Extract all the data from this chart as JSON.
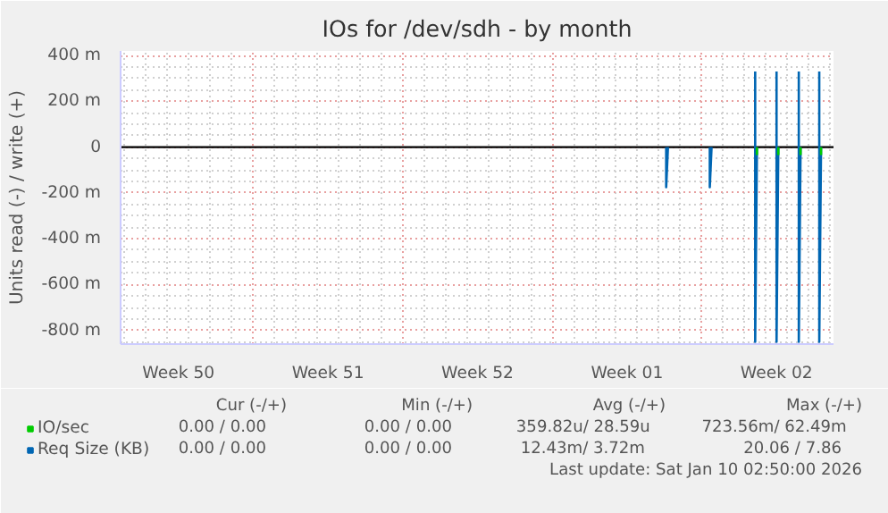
{
  "chart_data": {
    "type": "line",
    "title": "IOs for /dev/sdh - by month",
    "ylabel": "Units read (-) / write (+)",
    "xlim": [
      "2025-12-08T19:00",
      "2026-01-11T04:00"
    ],
    "xticks": [
      {
        "value": "2025-12-11T12:00",
        "label": "Week 50"
      },
      {
        "value": "2025-12-15",
        "label": null
      },
      {
        "value": "2025-12-18T12:00",
        "label": "Week 51"
      },
      {
        "value": "2025-12-22",
        "label": null
      },
      {
        "value": "2025-12-25T12:00",
        "label": "Week 52"
      },
      {
        "value": "2025-12-29",
        "label": null
      },
      {
        "value": "2026-01-01T12:00",
        "label": "Week 01"
      },
      {
        "value": "2026-01-05",
        "label": null
      },
      {
        "value": "2026-01-08T12:00",
        "label": "Week 02"
      }
    ],
    "ylim": [
      -860,
      420
    ],
    "yticks": [
      {
        "value": 400,
        "label": "400 m"
      },
      {
        "value": 200,
        "label": "200 m"
      },
      0,
      {
        "value": -200,
        "label": "-200 m"
      },
      {
        "value": -400,
        "label": "-400 m"
      },
      {
        "value": -600,
        "label": "-600 m"
      },
      {
        "value": -800,
        "label": "-800 m"
      }
    ],
    "grid": true,
    "legend": "bottom left",
    "line_style": "solid",
    "marker": "none",
    "ref_lines": [
      {
        "axis": "y",
        "value": 0,
        "label": null,
        "color": "#000000"
      }
    ],
    "series": [
      {
        "name": "IO/sec",
        "color": "#00cc00",
        "x": [
          "2026-01-07T14:00",
          "2026-01-07T14:00",
          "2026-01-07T15:00",
          "2026-01-08T14:00",
          "2026-01-08T14:00",
          "2026-01-08T15:00",
          "2026-01-09T15:00",
          "2026-01-09T15:00",
          "2026-01-09T16:00",
          "2026-01-10T14:00",
          "2026-01-10T14:00"
        ],
        "values": [
          0,
          -35,
          null,
          0,
          -35,
          null,
          0,
          -35,
          null,
          0,
          -35
        ]
      },
      {
        "name": "Req Size (KB)",
        "color": "#0066b3",
        "x": [
          "2026-01-03T08:00",
          "2026-01-03T08:00",
          "2026-01-03T10:00",
          "2026-01-04T00:00",
          "2026-01-05T09:00",
          "2026-01-05T09:00",
          "2026-01-05T11:00",
          "2026-01-06T00:00",
          "2026-01-07T12:00",
          "2026-01-07T12:00",
          "2026-01-07T14:00",
          "2026-01-08T00:00",
          "2026-01-08T12:00",
          "2026-01-08T12:00",
          "2026-01-08T14:00",
          "2026-01-09T00:00",
          "2026-01-09T13:00",
          "2026-01-09T13:00",
          "2026-01-09T15:00",
          "2026-01-10T00:00",
          "2026-01-10T12:00",
          "2026-01-10T12:00",
          "2026-01-10T14:00"
        ],
        "values": [
          0,
          -175,
          0,
          null,
          0,
          -175,
          0,
          null,
          330,
          -850,
          0,
          null,
          330,
          -850,
          0,
          null,
          330,
          -850,
          0,
          null,
          330,
          -850,
          0
        ]
      }
    ],
    "annotations": [
      "Cur (-/+)",
      "Min (-/+)",
      "Avg (-/+)",
      "Max (-/+)",
      "0.00 /     0.00",
      "0.00 /     0.00",
      "359.82u/    28.59u",
      "723.56m/    62.49m",
      "0.00 /     0.00",
      "0.00 /     0.00",
      "12.43m/     3.72m",
      "20.06 /     7.86",
      "Last update: Sat Jan 10 02:50:00 2026"
    ]
  }
}
